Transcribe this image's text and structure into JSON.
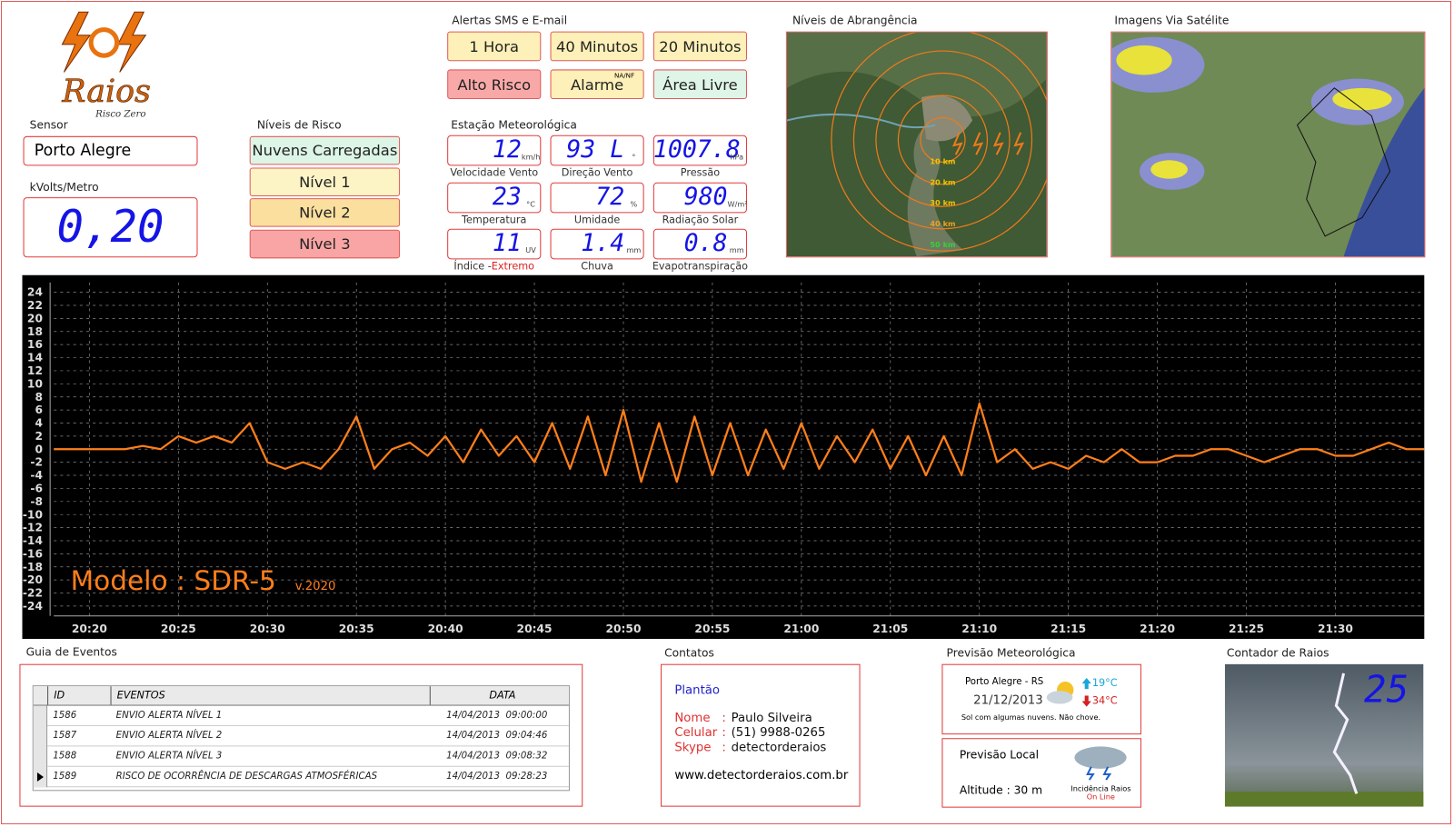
{
  "logo": {
    "title": "Raios",
    "subtitle": "Risco Zero"
  },
  "sensor": {
    "label": "Sensor",
    "value": "Porto Alegre",
    "field_label": "kVolts/Metro",
    "field_value": "0,20"
  },
  "risk": {
    "label": "Níveis de Risco",
    "levels": [
      "Nuvens Carregadas",
      "Nível 1",
      "Nível 2",
      "Nível 3"
    ]
  },
  "alerts": {
    "label": "Alertas SMS e E-mail",
    "buttons": [
      "1 Hora",
      "40 Minutos",
      "20 Minutos",
      "Alto Risco",
      "Alarme",
      "Área Livre"
    ],
    "alarm_note": "NA/NF"
  },
  "station": {
    "label": "Estação Meteorológica",
    "items": [
      {
        "value": "12",
        "unit": "km/h",
        "label": "Velocidade Vento"
      },
      {
        "value": "93 L",
        "unit": "°",
        "label": "Direção Vento"
      },
      {
        "value": "1007.8",
        "unit": "hPa",
        "label": "Pressão"
      },
      {
        "value": "23",
        "unit": "°C",
        "label": "Temperatura"
      },
      {
        "value": "72",
        "unit": "%",
        "label": "Umidade"
      },
      {
        "value": "980",
        "unit": "W/m²",
        "label": "Radiação Solar"
      },
      {
        "value": "11",
        "unit": "UV",
        "label": "Índice -",
        "label_extra": "Extremo"
      },
      {
        "value": "1.4",
        "unit": "mm",
        "label": "Chuva"
      },
      {
        "value": "0.8",
        "unit": "mm",
        "label": "Evapotranspiração"
      }
    ]
  },
  "maps": {
    "coverage_label": "Níveis de Abrangência",
    "rings": [
      "10 km",
      "20 km",
      "30 km",
      "40 km",
      "50 km"
    ],
    "satellite_label": "Imagens Via Satélite"
  },
  "chart_data": {
    "type": "line",
    "annotations": {
      "model": "Modelo : SDR-5",
      "version": "v.2020"
    },
    "x": [
      "20:18",
      "20:19",
      "20:20",
      "20:21",
      "20:22",
      "20:23",
      "20:24",
      "20:25",
      "20:26",
      "20:27",
      "20:28",
      "20:29",
      "20:30",
      "20:31",
      "20:32",
      "20:33",
      "20:34",
      "20:35",
      "20:36",
      "20:37",
      "20:38",
      "20:39",
      "20:40",
      "20:41",
      "20:42",
      "20:43",
      "20:44",
      "20:45",
      "20:46",
      "20:47",
      "20:48",
      "20:49",
      "20:50",
      "20:51",
      "20:52",
      "20:53",
      "20:54",
      "20:55",
      "20:56",
      "20:57",
      "20:58",
      "20:59",
      "21:00",
      "21:01",
      "21:02",
      "21:03",
      "21:04",
      "21:05",
      "21:06",
      "21:07",
      "21:08",
      "21:09",
      "21:10",
      "21:11",
      "21:12",
      "21:13",
      "21:14",
      "21:15",
      "21:16",
      "21:17",
      "21:18",
      "21:19",
      "21:20",
      "21:21",
      "21:22",
      "21:23",
      "21:24",
      "21:25",
      "21:26",
      "21:27",
      "21:28",
      "21:29",
      "21:30",
      "21:31",
      "21:32",
      "21:33",
      "21:34",
      "21:35"
    ],
    "series": [
      {
        "color": "#ff7f1a",
        "values": [
          0,
          0,
          0,
          0,
          0,
          0.5,
          0,
          2,
          1,
          2,
          1,
          4,
          -2,
          -3,
          -2,
          -3,
          0,
          5,
          -3,
          0,
          1,
          -1,
          2,
          -2,
          3,
          -1,
          2,
          -2,
          4,
          -3,
          5,
          -4,
          6,
          -5,
          4,
          -5,
          5,
          -4,
          4,
          -4,
          3,
          -3,
          4,
          -3,
          2,
          -2,
          3,
          -3,
          2,
          -4,
          2,
          -4,
          7,
          -2,
          0,
          -3,
          -2,
          -3,
          -1,
          -2,
          0,
          -2,
          -2,
          -1,
          -1,
          0,
          0,
          -1,
          -2,
          -1,
          0,
          0,
          -1,
          -1,
          0,
          1,
          0,
          0
        ]
      }
    ],
    "ylim": [
      -25.5,
      25.5
    ],
    "yticks": [
      24,
      22,
      20,
      18,
      16,
      14,
      12,
      10,
      8,
      6,
      4,
      2,
      0,
      -2,
      -4,
      -6,
      -8,
      -10,
      -12,
      -14,
      -16,
      -18,
      -20,
      -22,
      -24
    ],
    "xticks": [
      "20:20",
      "20:25",
      "20:30",
      "20:35",
      "20:40",
      "20:45",
      "20:50",
      "20:55",
      "21:00",
      "21:05",
      "21:10",
      "21:15",
      "21:20",
      "21:25",
      "21:30"
    ],
    "grid": true
  },
  "events": {
    "label": "Guia de Eventos",
    "headers": [
      "ID",
      "EVENTOS",
      "DATA"
    ],
    "rows": [
      [
        "1586",
        "ENVIO ALERTA NÍVEL 1",
        "14/04/2013  09:00:00"
      ],
      [
        "1587",
        "ENVIO ALERTA NÍVEL 2",
        "14/04/2013  09:04:46"
      ],
      [
        "1588",
        "ENVIO ALERTA NÍVEL 3",
        "14/04/2013  09:08:32"
      ],
      [
        "1589",
        "RISCO DE OCORRÊNCIA DE DESCARGAS ATMOSFÉRICAS",
        "14/04/2013  09:28:23"
      ]
    ]
  },
  "contacts": {
    "label": "Contatos",
    "heading": "Plantão",
    "separator": ":",
    "fields": [
      {
        "label": "Nome",
        "value": "Paulo Silveira"
      },
      {
        "label": "Celular",
        "value": "(51) 9988-0265"
      },
      {
        "label": "Skype",
        "value": "detectorderaios"
      }
    ],
    "website": "www.detectorderaios.com.br"
  },
  "forecast": {
    "label": "Previsão Meteorológica",
    "city": "Porto Alegre - RS",
    "date": "21/12/2013",
    "min": "19°C",
    "max": "34°C",
    "description": "Sol com algumas nuvens. Não chove.",
    "local_label": "Previsão Local",
    "altitude": "Altitude : 30 m",
    "incidence": "Incidência Raios",
    "status": "On Line"
  },
  "counter": {
    "label": "Contador de Raios",
    "value": "25"
  }
}
